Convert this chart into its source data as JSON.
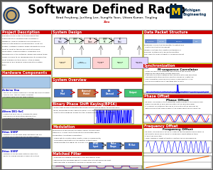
{
  "title": "Software Defined Radio",
  "subtitle1": "Brad Freyberg, JunYong Lee, SungHo Yoon, Uttara Kumar, Tingling",
  "subtitle2": "Zou",
  "bg_color": "#c8cc00",
  "section_red": "#cc0000",
  "white": "#ffffff",
  "panel_border": "#aaaaaa",
  "blue": "#3366cc",
  "dark_blue": "#00274c",
  "gold": "#ffcb05",
  "text_black": "#111111",
  "link_blue": "#0000cc",
  "sections_left": [
    "Project Description",
    "Hardware Components"
  ],
  "sections_mid": [
    "System Design",
    "System Overview",
    "Binary Phase Shift Keying(BPSK)",
    "Modulation",
    "Matched Filter"
  ],
  "sections_right": [
    "Data Packet Structure",
    "Synchronization",
    "Phase Offset",
    "Frequency Offset"
  ]
}
